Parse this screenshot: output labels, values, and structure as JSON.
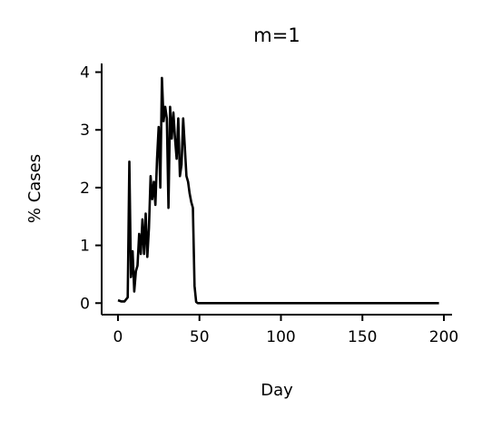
{
  "chart_data": {
    "type": "line",
    "title": "m=1",
    "xlabel": "Day",
    "ylabel": "% Cases",
    "xlim": [
      -10,
      205
    ],
    "ylim": [
      -0.2,
      4.15
    ],
    "xticks": [
      0,
      50,
      100,
      150,
      200
    ],
    "yticks": [
      0,
      1,
      2,
      3,
      4
    ],
    "grid": false,
    "legend": "none",
    "series": [
      {
        "color": "#000000",
        "x": [
          0,
          2,
          4,
          6,
          7,
          8,
          9,
          10,
          11,
          12,
          13,
          14,
          15,
          16,
          17,
          18,
          19,
          20,
          21,
          22,
          23,
          24,
          25,
          26,
          27,
          28,
          29,
          30,
          31,
          32,
          33,
          34,
          35,
          36,
          37,
          38,
          39,
          40,
          41,
          42,
          43,
          44,
          45,
          46,
          47,
          48,
          49,
          50,
          51,
          52,
          53,
          54,
          55,
          56,
          57,
          58,
          59,
          60,
          65,
          70,
          80,
          90,
          100,
          120,
          140,
          160,
          180,
          197
        ],
        "values": [
          0.05,
          0.03,
          0.03,
          0.1,
          2.45,
          0.45,
          0.9,
          0.2,
          0.55,
          0.65,
          1.2,
          0.85,
          1.45,
          0.85,
          1.55,
          0.8,
          1.3,
          2.2,
          1.8,
          2.1,
          1.7,
          2.5,
          3.05,
          2.0,
          3.9,
          3.15,
          3.4,
          3.2,
          1.65,
          3.4,
          2.85,
          3.3,
          2.85,
          2.5,
          3.2,
          2.2,
          2.4,
          3.2,
          2.7,
          2.2,
          2.1,
          1.9,
          1.75,
          1.65,
          0.3,
          0.02,
          0.0,
          0.0,
          0.0,
          0.0,
          0.0,
          0.0,
          0.0,
          0.0,
          0.0,
          0.0,
          0.0,
          0.0,
          0.0,
          0.0,
          0.0,
          0.0,
          0.0,
          0.0,
          0.0,
          0.0,
          0.0,
          0.0
        ]
      }
    ]
  }
}
